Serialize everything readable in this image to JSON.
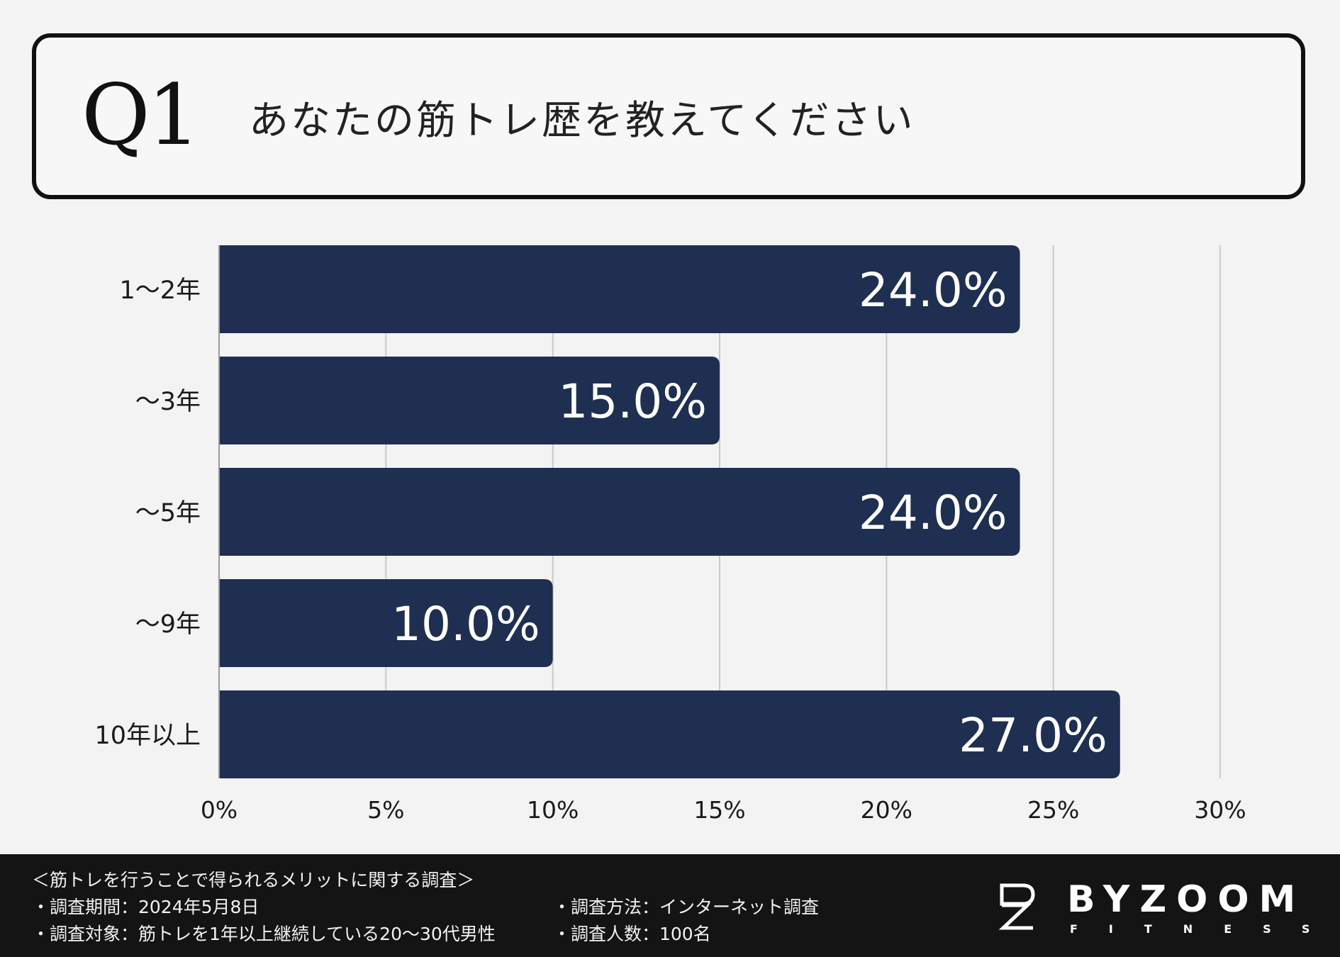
{
  "question": {
    "number": "Q1",
    "text": "あなたの筋トレ歴を教えてください"
  },
  "chart_data": {
    "type": "bar",
    "orientation": "horizontal",
    "categories": [
      "1〜2年",
      "〜3年",
      "〜5年",
      "〜9年",
      "10年以上"
    ],
    "values": [
      24.0,
      15.0,
      24.0,
      10.0,
      27.0
    ],
    "value_labels": [
      "24.0%",
      "15.0%",
      "24.0%",
      "10.0%",
      "27.0%"
    ],
    "xlim": [
      0,
      30
    ],
    "xticks": [
      0,
      5,
      10,
      15,
      20,
      25,
      30
    ],
    "xtick_labels": [
      "0%",
      "5%",
      "10%",
      "15%",
      "20%",
      "25%",
      "30%"
    ],
    "grid": true,
    "bar_color": "#1f2f51",
    "label_color": "#ffffff"
  },
  "footer": {
    "survey_title": "＜筋トレを行うことで得られるメリットに関する調査＞",
    "period": "・調査期間：2024年5月8日",
    "target": "・調査対象：筋トレを1年以上継続している20〜30代男性",
    "method": "・調査方法：インターネット調査",
    "count": "・調査人数：100名"
  },
  "logo": {
    "name": "BYZOOM",
    "sub": "FITNESS",
    "icon": "bz-monogram-icon"
  }
}
